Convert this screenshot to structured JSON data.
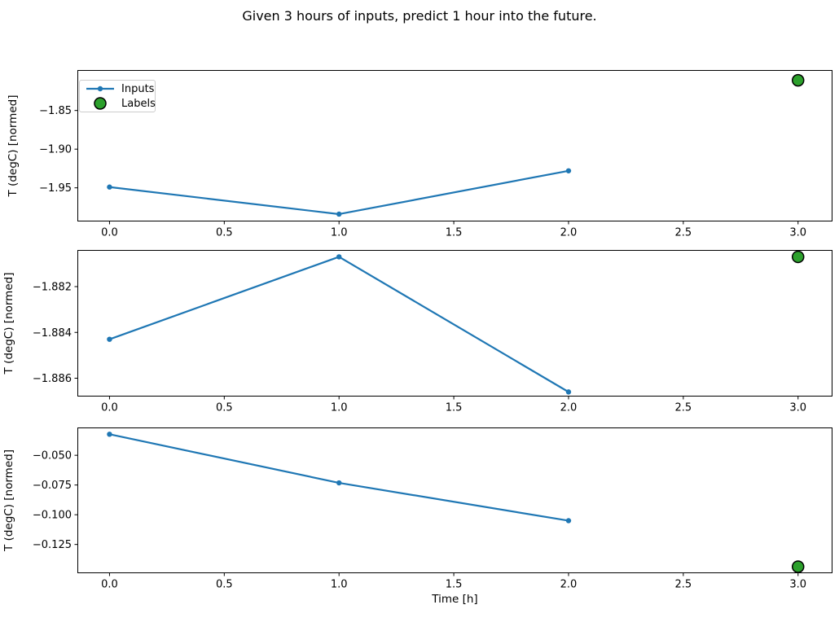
{
  "figure": {
    "title": "Given 3 hours of inputs, predict 1 hour into the future.",
    "xlabel": "Time [h]",
    "background": "#ffffff"
  },
  "colors": {
    "inputs_line": "#1f77b4",
    "labels_fill": "#2ca02c",
    "labels_edge": "#000000",
    "axis": "#000000",
    "text": "#000000",
    "legend_border": "#cccccc"
  },
  "legend": {
    "position": "upper-left-of-first-subplot",
    "items": [
      {
        "label": "Inputs",
        "marker": "line-with-dot",
        "color": "#1f77b4"
      },
      {
        "label": "Labels",
        "marker": "filled-circle",
        "color": "#2ca02c"
      }
    ]
  },
  "chart_data": [
    {
      "type": "line",
      "title": "",
      "ylabel": "T (degC) [normed]",
      "x": [
        0,
        1,
        2
      ],
      "series": [
        {
          "name": "Inputs",
          "values": [
            -1.949,
            -1.984,
            -1.928
          ]
        }
      ],
      "label_point": {
        "name": "Labels",
        "x": 3,
        "y": -1.811
      },
      "xlim": [
        -0.14,
        3.15
      ],
      "ylim": [
        -1.9935,
        -1.7977
      ],
      "xticks": [
        0.0,
        0.5,
        1.0,
        1.5,
        2.0,
        2.5,
        3.0
      ],
      "xtick_labels": [
        "0.0",
        "0.5",
        "1.0",
        "1.5",
        "2.0",
        "2.5",
        "3.0"
      ],
      "yticks": [
        -1.85,
        -1.9,
        -1.95
      ],
      "ytick_labels": [
        "−1.85",
        "−1.90",
        "−1.95"
      ],
      "grid": false,
      "legend": true
    },
    {
      "type": "line",
      "title": "",
      "ylabel": "T (degC) [normed]",
      "x": [
        0,
        1,
        2
      ],
      "series": [
        {
          "name": "Inputs",
          "values": [
            -1.8843,
            -1.8807,
            -1.8866
          ]
        }
      ],
      "label_point": {
        "name": "Labels",
        "x": 3,
        "y": -1.8807
      },
      "xlim": [
        -0.14,
        3.15
      ],
      "ylim": [
        -1.8868,
        -1.8804
      ],
      "xticks": [
        0.0,
        0.5,
        1.0,
        1.5,
        2.0,
        2.5,
        3.0
      ],
      "xtick_labels": [
        "0.0",
        "0.5",
        "1.0",
        "1.5",
        "2.0",
        "2.5",
        "3.0"
      ],
      "yticks": [
        -1.882,
        -1.884,
        -1.886
      ],
      "ytick_labels": [
        "−1.882",
        "−1.884",
        "−1.886"
      ],
      "grid": false,
      "legend": false
    },
    {
      "type": "line",
      "title": "",
      "ylabel": "T (degC) [normed]",
      "xlabel": "Time [h]",
      "x": [
        0,
        1,
        2
      ],
      "series": [
        {
          "name": "Inputs",
          "values": [
            -0.0323,
            -0.0732,
            -0.105
          ]
        }
      ],
      "label_point": {
        "name": "Labels",
        "x": 3,
        "y": -0.1437
      },
      "xlim": [
        -0.14,
        3.15
      ],
      "ylim": [
        -0.1492,
        -0.0266
      ],
      "xticks": [
        0.0,
        0.5,
        1.0,
        1.5,
        2.0,
        2.5,
        3.0
      ],
      "xtick_labels": [
        "0.0",
        "0.5",
        "1.0",
        "1.5",
        "2.0",
        "2.5",
        "3.0"
      ],
      "yticks": [
        -0.05,
        -0.075,
        -0.1,
        -0.125
      ],
      "ytick_labels": [
        "−0.050",
        "−0.075",
        "−0.100",
        "−0.125"
      ],
      "grid": false,
      "legend": false
    }
  ]
}
